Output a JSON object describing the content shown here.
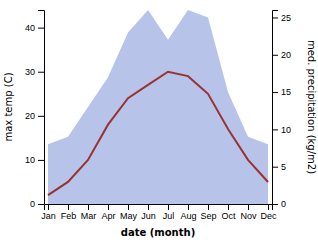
{
  "chart_data": {
    "type": "line",
    "xlabel": "date (month)",
    "ylabel": "max temp (C)",
    "y2label": "med. precipitation (kg/m2)",
    "categories": [
      "Jan",
      "Feb",
      "Mar",
      "Apr",
      "May",
      "Jun",
      "Jul",
      "Aug",
      "Sep",
      "Oct",
      "Nov",
      "Dec"
    ],
    "series": [
      {
        "type": "area",
        "axis": "y2",
        "color": "#b0bce8",
        "values": [
          8,
          9,
          13,
          17,
          23,
          26,
          22,
          26,
          25,
          15,
          9,
          8
        ]
      },
      {
        "type": "line",
        "color": "#993333",
        "values": [
          2,
          5,
          10,
          18,
          24,
          27,
          30,
          29,
          25,
          17,
          10,
          5
        ]
      }
    ],
    "ylim": [
      0,
      44
    ],
    "yticks": [
      0,
      10,
      20,
      30,
      40
    ],
    "y2lim": [
      0,
      26
    ],
    "y2ticks": [
      0,
      5,
      10,
      15,
      20,
      25
    ],
    "grid": false
  }
}
